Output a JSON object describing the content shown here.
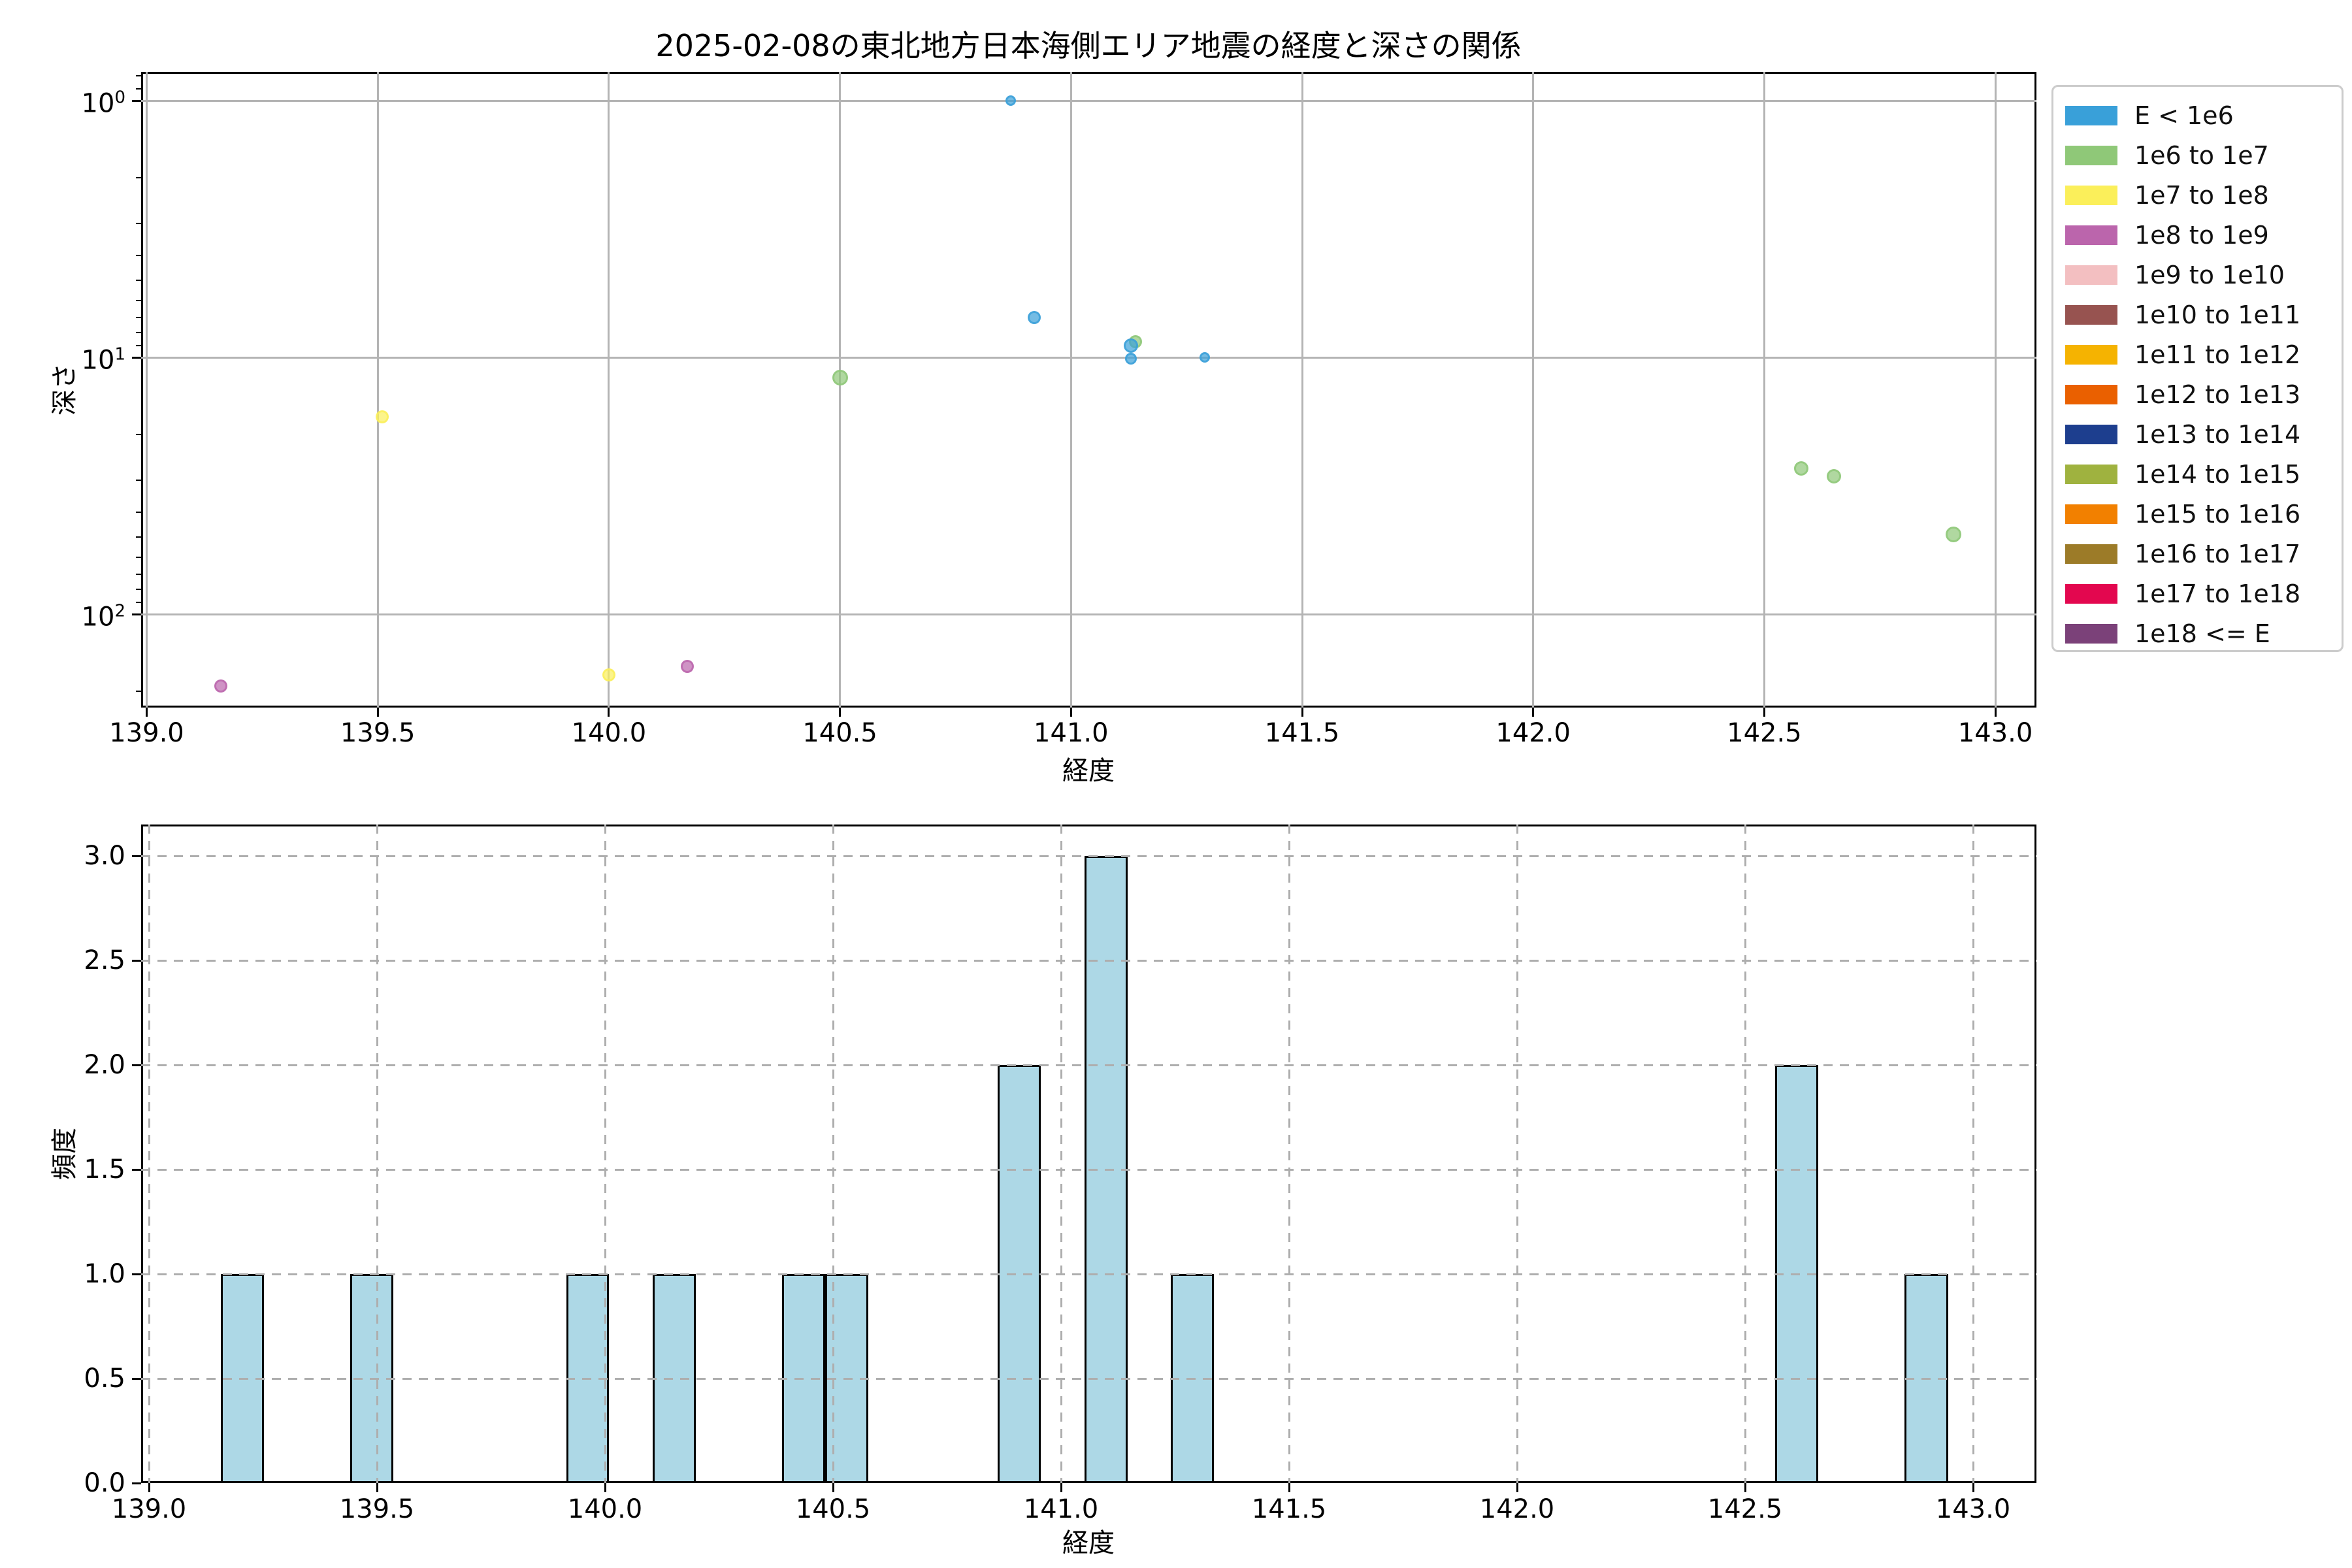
{
  "title": "2025-02-08の東北地方日本海側エリア地震の経度と深さの関係",
  "chart_data": [
    {
      "type": "scatter",
      "title": "2025-02-08の東北地方日本海側エリア地震の経度と深さの関係",
      "xlabel": "経度",
      "ylabel": "深さ",
      "x_ticks": [
        "139.0",
        "139.5",
        "140.0",
        "140.5",
        "141.0",
        "141.5",
        "142.0",
        "142.5",
        "143.0"
      ],
      "y_ticks": [
        {
          "base": "10",
          "exp": "0"
        },
        {
          "base": "10",
          "exp": "1"
        },
        {
          "base": "10",
          "exp": "2"
        }
      ],
      "xlim": [
        138.988,
        143.101
      ],
      "y_log_inverted": true,
      "ylim_log10": [
        -0.1125,
        2.3639
      ],
      "grid": "solid",
      "points": [
        {
          "lon": 139.16,
          "depth": 190,
          "bin": 3,
          "r": 10
        },
        {
          "lon": 139.51,
          "depth": 17,
          "bin": 2,
          "r": 10
        },
        {
          "lon": 140.0,
          "depth": 172,
          "bin": 2,
          "r": 10
        },
        {
          "lon": 140.17,
          "depth": 160,
          "bin": 3,
          "r": 10
        },
        {
          "lon": 140.5,
          "depth": 12,
          "bin": 1,
          "r": 12
        },
        {
          "lon": 140.87,
          "depth": 1.0,
          "bin": 0,
          "r": 8
        },
        {
          "lon": 140.92,
          "depth": 7.0,
          "bin": 0,
          "r": 10
        },
        {
          "lon": 141.14,
          "depth": 8.7,
          "bin": 1,
          "r": 10
        },
        {
          "lon": 141.13,
          "depth": 9.0,
          "bin": 0,
          "r": 11
        },
        {
          "lon": 141.13,
          "depth": 10.1,
          "bin": 0,
          "r": 9
        },
        {
          "lon": 141.29,
          "depth": 10.0,
          "bin": 0,
          "r": 8
        },
        {
          "lon": 142.58,
          "depth": 27,
          "bin": 1,
          "r": 11
        },
        {
          "lon": 142.65,
          "depth": 29,
          "bin": 1,
          "r": 11
        },
        {
          "lon": 142.91,
          "depth": 49,
          "bin": 1,
          "r": 12
        }
      ],
      "legend_position": "outside-right",
      "legend": [
        {
          "label": "E < 1e6",
          "color": "#39A0D9"
        },
        {
          "label": "1e6 to 1e7",
          "color": "#8FC878"
        },
        {
          "label": "1e7 to 1e8",
          "color": "#FBEF5A"
        },
        {
          "label": "1e8 to 1e9",
          "color": "#BB65AC"
        },
        {
          "label": "1e9 to 1e10",
          "color": "#F3BFC1"
        },
        {
          "label": "1e10 to 1e11",
          "color": "#975350"
        },
        {
          "label": "1e11 to 1e12",
          "color": "#F5B301"
        },
        {
          "label": "1e12 to 1e13",
          "color": "#EA6000"
        },
        {
          "label": "1e13 to 1e14",
          "color": "#1D3E8E"
        },
        {
          "label": "1e14 to 1e15",
          "color": "#9FB23F"
        },
        {
          "label": "1e15 to 1e16",
          "color": "#F28000"
        },
        {
          "label": "1e16 to 1e17",
          "color": "#9C7B28"
        },
        {
          "label": "1e17 to 1e18",
          "color": "#E3074F"
        },
        {
          "label": "1e18 <= E",
          "color": "#7B4179"
        }
      ]
    },
    {
      "type": "bar",
      "xlabel": "経度",
      "ylabel": "頻度",
      "x_ticks": [
        "139.0",
        "139.5",
        "140.0",
        "140.5",
        "141.0",
        "141.5",
        "142.0",
        "142.5",
        "143.0"
      ],
      "y_ticks": [
        "0.0",
        "0.5",
        "1.0",
        "1.5",
        "2.0",
        "2.5",
        "3.0"
      ],
      "xlim": [
        138.983,
        143.139
      ],
      "ylim": [
        0,
        3.15
      ],
      "grid": "dashed",
      "bar_color": "#ADD8E6",
      "bar_edge_color": "#000000",
      "bars": [
        {
          "x0": 139.157,
          "x1": 139.252,
          "count": 1
        },
        {
          "x0": 139.441,
          "x1": 139.536,
          "count": 1
        },
        {
          "x0": 139.915,
          "x1": 140.009,
          "count": 1
        },
        {
          "x0": 140.104,
          "x1": 140.199,
          "count": 1
        },
        {
          "x0": 140.388,
          "x1": 140.483,
          "count": 1
        },
        {
          "x0": 140.483,
          "x1": 140.577,
          "count": 1
        },
        {
          "x0": 140.861,
          "x1": 140.956,
          "count": 2
        },
        {
          "x0": 141.051,
          "x1": 141.146,
          "count": 3
        },
        {
          "x0": 141.24,
          "x1": 141.335,
          "count": 1
        },
        {
          "x0": 142.566,
          "x1": 142.661,
          "count": 2
        },
        {
          "x0": 142.85,
          "x1": 142.945,
          "count": 1
        }
      ]
    }
  ]
}
